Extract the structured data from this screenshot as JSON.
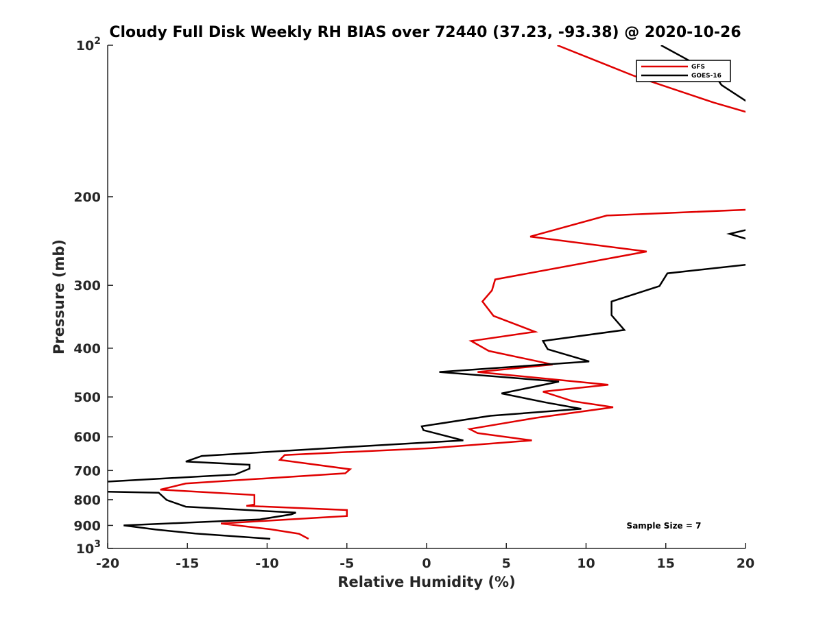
{
  "chart_data": {
    "type": "line",
    "title": "Cloudy Full Disk Weekly RH BIAS over 72440 (37.23, -93.38) @ 2020-10-26",
    "xlabel": "Relative Humidity (%)",
    "ylabel": "Pressure (mb)",
    "xlim": [
      -20,
      20
    ],
    "ylim": [
      100,
      1000
    ],
    "y_scale": "log",
    "y_reversed": true,
    "x_ticks": [
      "-20",
      "-15",
      "-10",
      "-5",
      "0",
      "5",
      "10",
      "15",
      "20"
    ],
    "y_ticks": [
      {
        "value": 100,
        "base": "10",
        "exp": "2"
      },
      {
        "value": 200,
        "label": "200"
      },
      {
        "value": 300,
        "label": "300"
      },
      {
        "value": 400,
        "label": "400"
      },
      {
        "value": 500,
        "label": "500"
      },
      {
        "value": 600,
        "label": "600"
      },
      {
        "value": 700,
        "label": "700"
      },
      {
        "value": 800,
        "label": "800"
      },
      {
        "value": 900,
        "label": "900"
      },
      {
        "value": 1000,
        "base": "10",
        "exp": "3"
      }
    ],
    "grid": false,
    "legend_position": "top-right",
    "annotation": "Sample Size = 7",
    "series": [
      {
        "name": "GFS",
        "color": "#e00000",
        "points": [
          [
            8.2,
            100
          ],
          [
            13.0,
            115
          ],
          [
            18.0,
            130
          ],
          [
            20.5,
            137
          ],
          [
            20.5,
            212
          ],
          [
            11.3,
            218
          ],
          [
            6.5,
            240
          ],
          [
            13.8,
            257
          ],
          [
            4.3,
            292
          ],
          [
            4.1,
            307
          ],
          [
            3.5,
            323
          ],
          [
            4.2,
            345
          ],
          [
            6.8,
            371
          ],
          [
            2.8,
            387
          ],
          [
            3.9,
            405
          ],
          [
            7.9,
            431
          ],
          [
            3.2,
            446
          ],
          [
            11.4,
            473
          ],
          [
            7.3,
            488
          ],
          [
            9.2,
            510
          ],
          [
            11.7,
            524
          ],
          [
            6.9,
            550
          ],
          [
            2.7,
            579
          ],
          [
            3.2,
            590
          ],
          [
            6.6,
            610
          ],
          [
            0.3,
            632
          ],
          [
            -8.9,
            652
          ],
          [
            -9.2,
            667
          ],
          [
            -4.8,
            696
          ],
          [
            -5.1,
            709
          ],
          [
            -15.1,
            743
          ],
          [
            -16.7,
            764
          ],
          [
            -10.8,
            783
          ],
          [
            -10.8,
            818
          ],
          [
            -11.3,
            823
          ],
          [
            -5.0,
            839
          ],
          [
            -5.0,
            862
          ],
          [
            -6.6,
            868
          ],
          [
            -12.9,
            892
          ],
          [
            -9.8,
            916
          ],
          [
            -8.0,
            935
          ],
          [
            -7.4,
            957
          ]
        ]
      },
      {
        "name": "GOES-16",
        "color": "#000000",
        "points": [
          [
            14.7,
            100
          ],
          [
            18.0,
            114
          ],
          [
            18.5,
            120
          ],
          [
            20.5,
            132
          ],
          [
            20.5,
            231
          ],
          [
            19.0,
            237
          ],
          [
            20.5,
            245
          ],
          [
            20.5,
            272
          ],
          [
            15.1,
            284
          ],
          [
            14.6,
            301
          ],
          [
            11.6,
            323
          ],
          [
            11.6,
            344
          ],
          [
            12.4,
            368
          ],
          [
            7.3,
            387
          ],
          [
            7.6,
            402
          ],
          [
            10.2,
            425
          ],
          [
            0.8,
            446
          ],
          [
            8.3,
            466
          ],
          [
            4.7,
            492
          ],
          [
            7.5,
            513
          ],
          [
            9.7,
            528
          ],
          [
            4.0,
            545
          ],
          [
            -0.3,
            572
          ],
          [
            -0.2,
            582
          ],
          [
            2.3,
            610
          ],
          [
            -4.3,
            627
          ],
          [
            -14.1,
            655
          ],
          [
            -15.1,
            672
          ],
          [
            -11.1,
            682
          ],
          [
            -11.1,
            694
          ],
          [
            -12.0,
            713
          ],
          [
            -20.2,
            737
          ],
          [
            -20.2,
            771
          ],
          [
            -16.8,
            775
          ],
          [
            -16.3,
            801
          ],
          [
            -15.1,
            826
          ],
          [
            -8.2,
            849
          ],
          [
            -8.5,
            856
          ],
          [
            -10.5,
            876
          ],
          [
            -19.0,
            900
          ],
          [
            -17.0,
            917
          ],
          [
            -14.5,
            934
          ],
          [
            -9.8,
            957
          ]
        ]
      }
    ]
  }
}
